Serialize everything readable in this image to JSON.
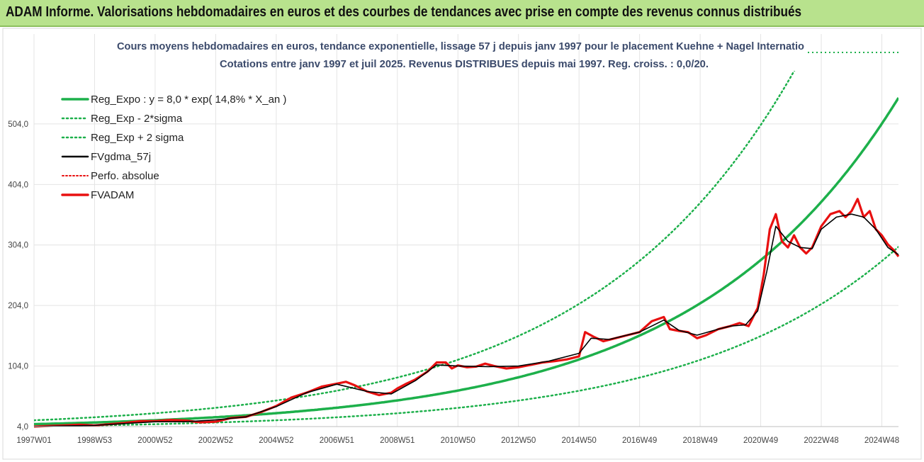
{
  "banner": {
    "title": "ADAM Informe. Valorisations hebdomadaires en euros et des courbes de tendances avec prise en compte des revenus connus distribués"
  },
  "chart_data": {
    "type": "line",
    "title": "Cours moyens hebdomadaires en euros, tendance exponentielle, lissage 57 j depuis janv 1997 pour le placement Kuehne + Nagel Internatio",
    "subtitle": "Cotations entre janv 1997 et juil 2025. Revenus DISTRIBUES depuis mai 1997. Reg. croiss. : 0,0/20.",
    "x_tick_labels": [
      "1997W01",
      "1998W53",
      "2000W52",
      "2002W52",
      "2004W52",
      "2006W51",
      "2008W51",
      "2010W50",
      "2012W50",
      "2014W50",
      "2016W49",
      "2018W49",
      "2020W49",
      "2022W48",
      "2024W48"
    ],
    "x_tick_years": [
      1997.0,
      1999.0,
      2001.0,
      2003.0,
      2005.0,
      2007.0,
      2009.0,
      2011.0,
      2013.0,
      2015.0,
      2017.0,
      2019.0,
      2021.0,
      2023.0,
      2025.0
    ],
    "x_range": [
      1997.0,
      2025.55
    ],
    "ylim": [
      4.0,
      587.0
    ],
    "y_ticks": [
      4.0,
      104.0,
      204.0,
      304.0,
      404.0,
      504.0
    ],
    "y_tick_labels": [
      "4,0",
      "104,0",
      "204,0",
      "304,0",
      "404,0",
      "504,0"
    ],
    "grid": true,
    "legend_position": "top-left",
    "legend": [
      {
        "key": "reg",
        "label": "Reg_Expo : y = 8,0 * exp( 14,8% *  X_an )"
      },
      {
        "key": "low",
        "label": "Reg_Exp - 2*sigma"
      },
      {
        "key": "high",
        "label": "Reg_Exp + 2 sigma"
      },
      {
        "key": "fvg",
        "label": "FVgdma_57j"
      },
      {
        "key": "perf",
        "label": "Perfo. absolue"
      },
      {
        "key": "fvadam",
        "label": "FVADAM"
      }
    ],
    "colors": {
      "reg": "#1db04b",
      "band": "#1db04b",
      "fvg": "#000000",
      "perf": "#e81010",
      "fvadam": "#e81010"
    },
    "regression": {
      "a": 8.0,
      "rate": 0.148
    },
    "band_factors": {
      "low": 0.55,
      "high": 1.8
    },
    "series": [
      {
        "name": "FVADAM",
        "x": [
          1997.0,
          1997.5,
          1998.0,
          1998.5,
          1999.0,
          1999.5,
          2000.0,
          2000.5,
          2001.0,
          2001.5,
          2002.0,
          2002.5,
          2003.0,
          2003.5,
          2004.0,
          2004.5,
          2005.0,
          2005.5,
          2006.0,
          2006.5,
          2007.0,
          2007.3,
          2007.6,
          2008.0,
          2008.4,
          2008.8,
          2009.0,
          2009.3,
          2009.6,
          2010.0,
          2010.3,
          2010.6,
          2010.8,
          2011.0,
          2011.3,
          2011.6,
          2011.9,
          2012.2,
          2012.6,
          2013.0,
          2013.4,
          2013.8,
          2014.2,
          2014.6,
          2015.0,
          2015.2,
          2015.5,
          2015.8,
          2016.2,
          2016.6,
          2017.0,
          2017.4,
          2017.8,
          2018.0,
          2018.3,
          2018.6,
          2018.9,
          2019.2,
          2019.6,
          2020.0,
          2020.3,
          2020.6,
          2020.9,
          2021.1,
          2021.3,
          2021.5,
          2021.7,
          2021.9,
          2022.1,
          2022.3,
          2022.5,
          2022.7,
          2023.0,
          2023.3,
          2023.6,
          2023.8,
          2024.0,
          2024.2,
          2024.4,
          2024.6,
          2024.8,
          2025.0,
          2025.2,
          2025.4,
          2025.55
        ],
        "values": [
          4,
          5,
          6,
          7,
          6,
          8,
          10,
          13,
          13,
          15,
          14,
          11,
          12,
          18,
          20,
          28,
          38,
          52,
          60,
          70,
          75,
          78,
          72,
          62,
          56,
          60,
          67,
          75,
          82,
          95,
          110,
          110,
          100,
          105,
          102,
          103,
          108,
          104,
          100,
          102,
          106,
          110,
          112,
          115,
          120,
          160,
          152,
          145,
          150,
          155,
          160,
          178,
          185,
          165,
          162,
          160,
          150,
          155,
          165,
          170,
          175,
          170,
          200,
          255,
          330,
          355,
          310,
          300,
          320,
          300,
          290,
          300,
          335,
          355,
          360,
          350,
          360,
          380,
          350,
          360,
          330,
          320,
          305,
          295,
          285
        ]
      },
      {
        "name": "FVgdma_57j",
        "x": [
          1997.0,
          1998.0,
          1999.0,
          2000.0,
          2001.0,
          2002.0,
          2003.0,
          2004.0,
          2005.0,
          2006.0,
          2007.0,
          2008.0,
          2008.8,
          2009.6,
          2010.3,
          2011.0,
          2012.0,
          2013.0,
          2014.0,
          2015.0,
          2015.4,
          2016.0,
          2017.0,
          2017.8,
          2018.3,
          2018.9,
          2019.6,
          2020.0,
          2020.5,
          2020.9,
          2021.2,
          2021.5,
          2021.9,
          2022.3,
          2022.7,
          2023.0,
          2023.5,
          2024.0,
          2024.4,
          2024.8,
          2025.2,
          2025.55
        ],
        "values": [
          4,
          5,
          6,
          9,
          12,
          12,
          15,
          20,
          37,
          60,
          74,
          62,
          58,
          80,
          106,
          104,
          103,
          104,
          112,
          125,
          150,
          148,
          160,
          180,
          163,
          155,
          165,
          170,
          172,
          195,
          260,
          335,
          310,
          300,
          298,
          330,
          350,
          355,
          350,
          330,
          300,
          288
        ]
      }
    ]
  }
}
